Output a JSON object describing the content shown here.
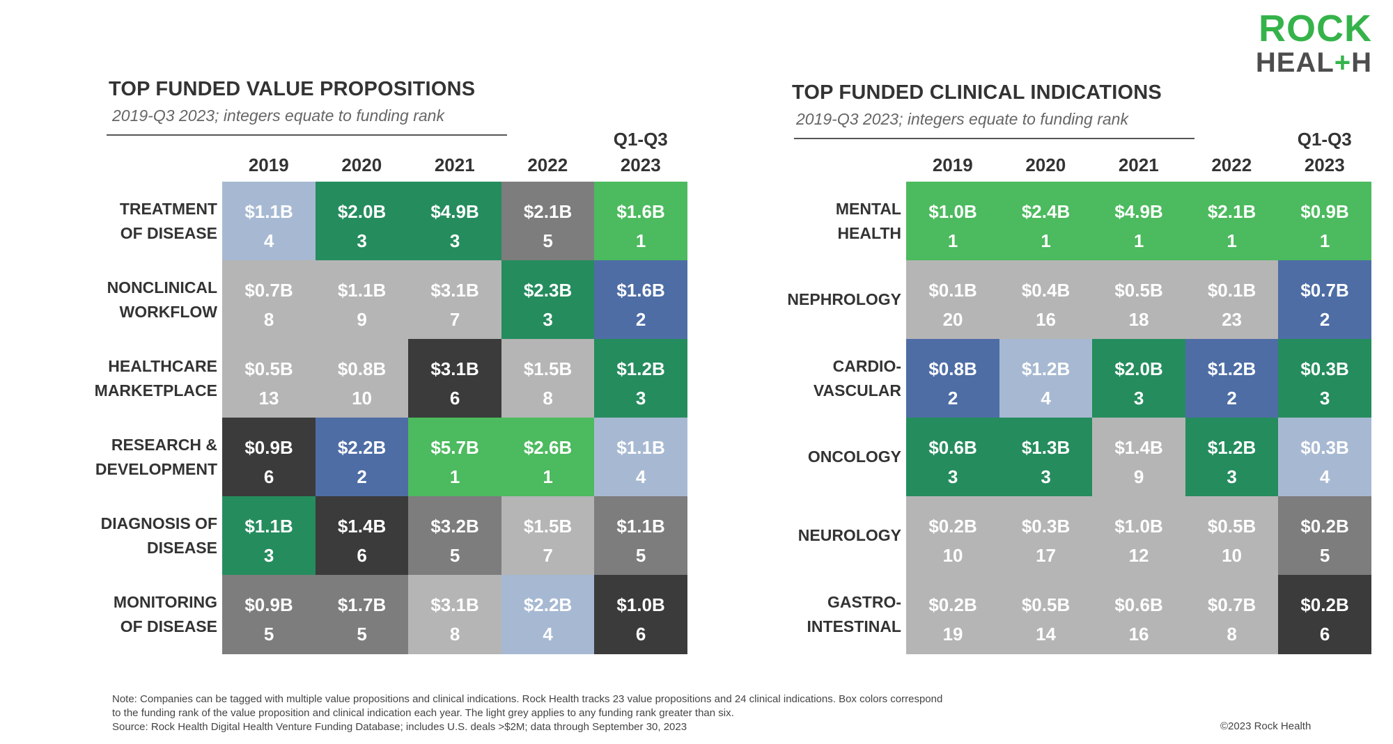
{
  "logo": {
    "line1": "ROCK",
    "line2a": "HEAL",
    "line2plus": "+",
    "line2b": "H"
  },
  "colors": {
    "rank1": "#4cba5e",
    "rank2": "#4e6da5",
    "rank3": "#258c5e",
    "rank4": "#a7b9d2",
    "rank5": "#7d7d7d",
    "rank6": "#3b3b3b",
    "rank7plus": "#b5b5b5"
  },
  "chart_data": [
    {
      "type": "table",
      "title": "TOP FUNDED VALUE PROPOSITIONS",
      "subtitle": "2019-Q3 2023; integers equate to funding rank",
      "columns": [
        "2019",
        "2020",
        "2021",
        "2022",
        "Q1-Q3\n2023"
      ],
      "rows": [
        {
          "label": "TREATMENT\nOF DISEASE",
          "amounts": [
            "$1.1B",
            "$2.0B",
            "$4.9B",
            "$2.1B",
            "$1.6B"
          ],
          "ranks": [
            4,
            3,
            3,
            5,
            1
          ]
        },
        {
          "label": "NONCLINICAL\nWORKFLOW",
          "amounts": [
            "$0.7B",
            "$1.1B",
            "$3.1B",
            "$2.3B",
            "$1.6B"
          ],
          "ranks": [
            8,
            9,
            7,
            3,
            2
          ]
        },
        {
          "label": "HEALTHCARE\nMARKETPLACE",
          "amounts": [
            "$0.5B",
            "$0.8B",
            "$3.1B",
            "$1.5B",
            "$1.2B"
          ],
          "ranks": [
            13,
            10,
            6,
            8,
            3
          ]
        },
        {
          "label": "RESEARCH &\nDEVELOPMENT",
          "amounts": [
            "$0.9B",
            "$2.2B",
            "$5.7B",
            "$2.6B",
            "$1.1B"
          ],
          "ranks": [
            6,
            2,
            1,
            1,
            4
          ]
        },
        {
          "label": "DIAGNOSIS OF\nDISEASE",
          "amounts": [
            "$1.1B",
            "$1.4B",
            "$3.2B",
            "$1.5B",
            "$1.1B"
          ],
          "ranks": [
            3,
            6,
            5,
            7,
            5
          ]
        },
        {
          "label": "MONITORING\nOF DISEASE",
          "amounts": [
            "$0.9B",
            "$1.7B",
            "$3.1B",
            "$2.2B",
            "$1.0B"
          ],
          "ranks": [
            5,
            5,
            8,
            4,
            6
          ]
        }
      ]
    },
    {
      "type": "table",
      "title": "TOP FUNDED CLINICAL INDICATIONS",
      "subtitle": "2019-Q3 2023; integers equate to funding rank",
      "columns": [
        "2019",
        "2020",
        "2021",
        "2022",
        "Q1-Q3\n2023"
      ],
      "rows": [
        {
          "label": "MENTAL\nHEALTH",
          "amounts": [
            "$1.0B",
            "$2.4B",
            "$4.9B",
            "$2.1B",
            "$0.9B"
          ],
          "ranks": [
            1,
            1,
            1,
            1,
            1
          ]
        },
        {
          "label": "NEPHROLOGY",
          "amounts": [
            "$0.1B",
            "$0.4B",
            "$0.5B",
            "$0.1B",
            "$0.7B"
          ],
          "ranks": [
            20,
            16,
            18,
            23,
            2
          ]
        },
        {
          "label": "CARDIO-\nVASCULAR",
          "amounts": [
            "$0.8B",
            "$1.2B",
            "$2.0B",
            "$1.2B",
            "$0.3B"
          ],
          "ranks": [
            2,
            4,
            3,
            2,
            3
          ]
        },
        {
          "label": "ONCOLOGY",
          "amounts": [
            "$0.6B",
            "$1.3B",
            "$1.4B",
            "$1.2B",
            "$0.3B"
          ],
          "ranks": [
            3,
            3,
            9,
            3,
            4
          ]
        },
        {
          "label": "NEUROLOGY",
          "amounts": [
            "$0.2B",
            "$0.3B",
            "$1.0B",
            "$0.5B",
            "$0.2B"
          ],
          "ranks": [
            10,
            17,
            12,
            10,
            5
          ]
        },
        {
          "label": "GASTRO-\nINTESTINAL",
          "amounts": [
            "$0.2B",
            "$0.5B",
            "$0.6B",
            "$0.7B",
            "$0.2B"
          ],
          "ranks": [
            19,
            14,
            16,
            8,
            6
          ]
        }
      ]
    }
  ],
  "footer": {
    "note_lines": [
      "Note: Companies can be tagged with multiple value propositions and clinical indications. Rock Health tracks 23 value propositions and 24 clinical indications. Box colors correspond",
      "to the funding rank of the value proposition and clinical indication each year. The light grey applies to any funding rank greater than six.",
      "Source: Rock Health Digital Health Venture Funding Database; includes U.S. deals >$2M; data through September 30, 2023"
    ],
    "copyright": "©2023 Rock Health"
  }
}
